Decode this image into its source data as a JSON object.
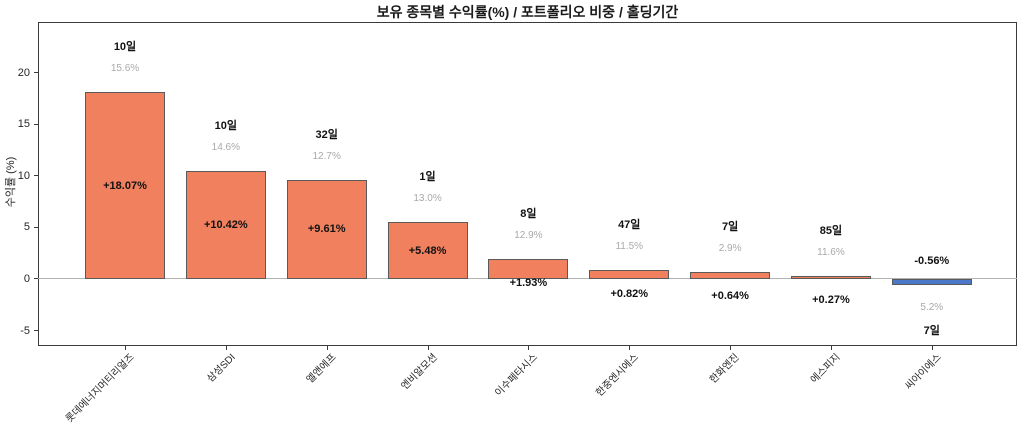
{
  "chart_data": {
    "type": "bar",
    "title": "보유 종목별 수익률(%) / 포트폴리오 비중 / 홀딩기간",
    "ylabel": "수익률 (%)",
    "ylim": [
      -6.5,
      24.9
    ],
    "yticks": [
      20,
      15,
      10,
      5,
      0,
      -5
    ],
    "grid": false,
    "legend": "none",
    "categories": [
      "롯데에너지머티리얼즈",
      "삼성SDI",
      "엘앤에프",
      "엔비알모션",
      "이수페타시스",
      "한중엔시에스",
      "한화엔진",
      "에스피지",
      "씨아이에스"
    ],
    "bars": [
      {
        "category": "롯데에너지머티리얼즈",
        "return_pct": 18.07,
        "return_label": "+18.07%",
        "weight_pct": 15.6,
        "weight_label": "15.6%",
        "holding_days": 10,
        "holding_label": "10일"
      },
      {
        "category": "삼성SDI",
        "return_pct": 10.42,
        "return_label": "+10.42%",
        "weight_pct": 14.6,
        "weight_label": "14.6%",
        "holding_days": 10,
        "holding_label": "10일"
      },
      {
        "category": "엘앤에프",
        "return_pct": 9.61,
        "return_label": "+9.61%",
        "weight_pct": 12.7,
        "weight_label": "12.7%",
        "holding_days": 32,
        "holding_label": "32일"
      },
      {
        "category": "엔비알모션",
        "return_pct": 5.48,
        "return_label": "+5.48%",
        "weight_pct": 13.0,
        "weight_label": "13.0%",
        "holding_days": 1,
        "holding_label": "1일"
      },
      {
        "category": "이수페타시스",
        "return_pct": 1.93,
        "return_label": "+1.93%",
        "weight_pct": 12.9,
        "weight_label": "12.9%",
        "holding_days": 8,
        "holding_label": "8일"
      },
      {
        "category": "한중엔시에스",
        "return_pct": 0.82,
        "return_label": "+0.82%",
        "weight_pct": 11.5,
        "weight_label": "11.5%",
        "holding_days": 47,
        "holding_label": "47일"
      },
      {
        "category": "한화엔진",
        "return_pct": 0.64,
        "return_label": "+0.64%",
        "weight_pct": 2.9,
        "weight_label": "2.9%",
        "holding_days": 7,
        "holding_label": "7일"
      },
      {
        "category": "에스피지",
        "return_pct": 0.27,
        "return_label": "+0.27%",
        "weight_pct": 11.6,
        "weight_label": "11.6%",
        "holding_days": 85,
        "holding_label": "85일"
      },
      {
        "category": "씨아이에스",
        "return_pct": -0.56,
        "return_label": "-0.56%",
        "weight_pct": 5.2,
        "weight_label": "5.2%",
        "holding_days": 7,
        "holding_label": "7일"
      }
    ],
    "colors": {
      "positive_bar": "#F0805E",
      "negative_bar": "#4B78C8",
      "bar_border": "#5a5a5a",
      "zero_line": "#b3b3b3",
      "axis": "#3a3a3a",
      "weight_text": "#a9a9a9",
      "label_text": "#111111",
      "background": "#ffffff"
    }
  }
}
